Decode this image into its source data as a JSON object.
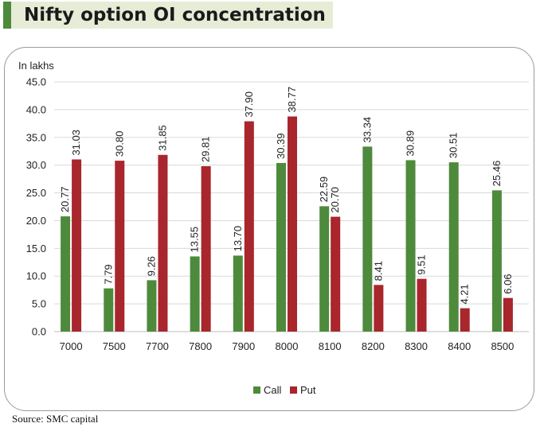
{
  "title": "Nifty option OI concentration",
  "source": "Source: SMC capital",
  "chart_data": {
    "type": "bar",
    "unit_label": "In lakhs",
    "categories": [
      "7000",
      "7500",
      "7700",
      "7800",
      "7900",
      "8000",
      "8100",
      "8200",
      "8300",
      "8400",
      "8500"
    ],
    "series": [
      {
        "name": "Call",
        "color": "#4e8a3c",
        "values": [
          20.77,
          7.79,
          9.26,
          13.55,
          13.7,
          30.39,
          22.59,
          33.34,
          30.89,
          30.51,
          25.46
        ],
        "labels": [
          "20.77",
          "7.79",
          "9.26",
          "13.55",
          "13.70",
          "30.39",
          "22.59",
          "33.34",
          "30.89",
          "30.51",
          "25.46"
        ]
      },
      {
        "name": "Put",
        "color": "#a8262c",
        "values": [
          31.03,
          30.8,
          31.85,
          29.81,
          37.9,
          38.77,
          20.7,
          8.41,
          9.51,
          4.21,
          6.06
        ],
        "labels": [
          "31.03",
          "30.80",
          "31.85",
          "29.81",
          "37.90",
          "38.77",
          "20.70",
          "8.41",
          "9.51",
          "4.21",
          "6.06"
        ]
      }
    ],
    "ylim": [
      0,
      45
    ],
    "yticks": [
      "0.0",
      "5.0",
      "10.0",
      "15.0",
      "20.0",
      "25.0",
      "30.0",
      "35.0",
      "40.0",
      "45.0"
    ],
    "grid": true,
    "legend": "bottom-center"
  }
}
